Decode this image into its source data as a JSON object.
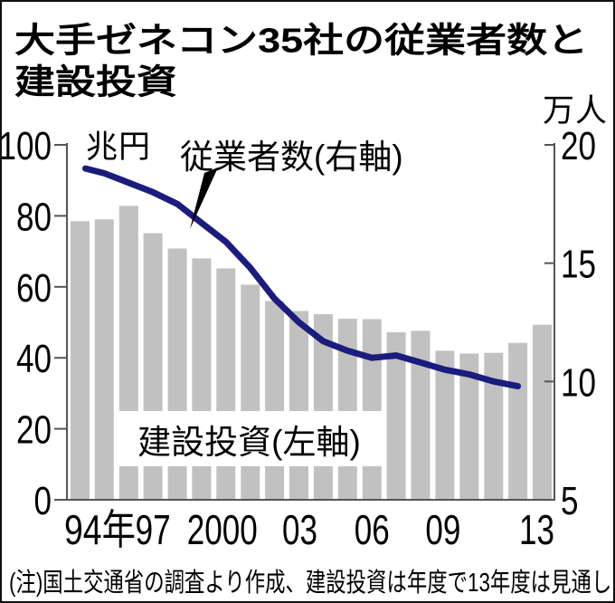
{
  "title": {
    "line1": "大手ゼネコン35社の従業者数と",
    "line2": "建設投資"
  },
  "labels": {
    "left_unit": "兆円",
    "right_unit": "万人",
    "line_series": "従業者数(右軸)",
    "bar_series": "建設投資(左軸)"
  },
  "note": "(注)国土交通省の調査より作成、建設投資は年度で13年度は見通し",
  "chart_data": {
    "type": "combo_bar_line",
    "title": "大手ゼネコン35社の従業者数と建設投資",
    "categories": [
      "1994",
      "1995",
      "1996",
      "1997",
      "1998",
      "1999",
      "2000",
      "2001",
      "2002",
      "2003",
      "2004",
      "2005",
      "2006",
      "2007",
      "2008",
      "2009",
      "2010",
      "2011",
      "2012",
      "2013"
    ],
    "series": [
      {
        "name": "建設投資",
        "type": "bar",
        "axis": "left",
        "unit": "兆円",
        "color": "#c1c1c1",
        "values": [
          78.5,
          79.0,
          82.8,
          75.1,
          70.8,
          68.0,
          65.2,
          60.6,
          56.0,
          53.2,
          52.3,
          51.0,
          50.9,
          47.2,
          47.6,
          42.0,
          41.2,
          41.4,
          44.2,
          49.3
        ]
      },
      {
        "name": "従業者数",
        "type": "line",
        "axis": "right",
        "unit": "万人",
        "color": "#1b1c7d",
        "values": [
          19.0,
          18.8,
          18.4,
          18.0,
          17.5,
          16.7,
          15.9,
          14.8,
          13.5,
          12.5,
          11.7,
          11.3,
          11.0,
          11.1,
          10.8,
          10.5,
          10.3,
          10.0,
          9.8,
          null
        ]
      }
    ],
    "y_left": {
      "min": 0,
      "max": 100,
      "ticks": [
        100,
        80,
        60,
        40,
        20,
        0
      ]
    },
    "y_right": {
      "min": 5,
      "max": 20,
      "ticks": [
        20,
        15,
        10,
        5
      ]
    },
    "x_ticks": [
      {
        "label": "94年",
        "index": 0,
        "dx": 22
      },
      {
        "label": "97",
        "index": 3,
        "dx": 0
      },
      {
        "label": "2000",
        "index": 6,
        "dx": -4
      },
      {
        "label": "03",
        "index": 9,
        "dx": 1
      },
      {
        "label": "06",
        "index": 12,
        "dx": 0
      },
      {
        "label": "09",
        "index": 15,
        "dx": -2
      },
      {
        "label": "13",
        "index": 19,
        "dx": -6
      }
    ],
    "grid": false,
    "legend_position": "inline-annotations",
    "axis_color": "#555",
    "annotation_arrow": [
      [
        239,
        183
      ],
      [
        224,
        189
      ],
      [
        208,
        251
      ]
    ]
  }
}
